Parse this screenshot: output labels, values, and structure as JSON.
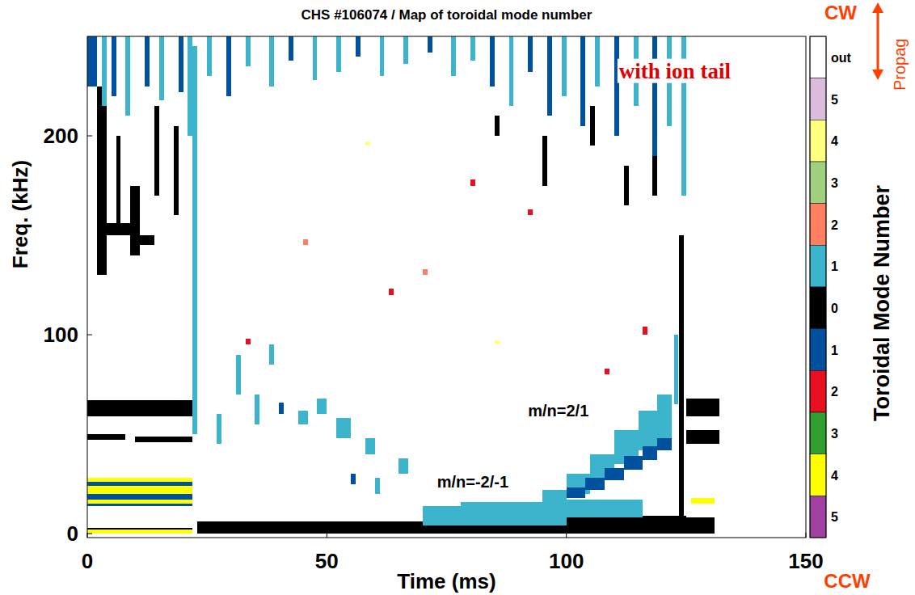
{
  "chart_data": {
    "type": "heatmap",
    "title": "CHS #106074 / Map of toroidal mode number",
    "x_label": "Time (ms)",
    "y_label": "Freq. (kHz)",
    "xlim": [
      0,
      150
    ],
    "ylim": [
      -2,
      250
    ],
    "xticks": [
      0,
      50,
      100,
      150
    ],
    "yticks": [
      0,
      100,
      200
    ],
    "annotations": [
      {
        "text": "with ion tail",
        "x": 111,
        "y": 229,
        "color": "#e00000"
      },
      {
        "text": "m/n=2/1",
        "x": 92,
        "y": 59,
        "color": "#000000"
      },
      {
        "text": "m/n=-2/-1",
        "x": 73,
        "y": 23,
        "color": "#000000"
      }
    ],
    "colorbar": {
      "title": "Toroidal Mode Number",
      "top_label": "CW",
      "bottom_label": "CCW",
      "arrow_label": "Propag",
      "entries": [
        {
          "label": "out",
          "color": "#ffffff"
        },
        {
          "value": 5,
          "direction": "CW",
          "color": "#dcbcdc"
        },
        {
          "value": 4,
          "direction": "CW",
          "color": "#ffff80"
        },
        {
          "value": 3,
          "direction": "CW",
          "color": "#a0d080"
        },
        {
          "value": 2,
          "direction": "CW",
          "color": "#ff8060"
        },
        {
          "value": 1,
          "direction": "CW",
          "color": "#3cb4cc"
        },
        {
          "value": 0,
          "color": "#000000"
        },
        {
          "value": 1,
          "direction": "CCW",
          "color": "#0050a0"
        },
        {
          "value": 2,
          "direction": "CCW",
          "color": "#e81020"
        },
        {
          "value": 3,
          "direction": "CCW",
          "color": "#30a030"
        },
        {
          "value": 4,
          "direction": "CCW",
          "color": "#ffff00"
        },
        {
          "value": 5,
          "direction": "CCW",
          "color": "#a040a0"
        }
      ]
    },
    "cells": [
      [
        0,
        22,
        59,
        67,
        0
      ],
      [
        0,
        8,
        47,
        50,
        0
      ],
      [
        10,
        22,
        46,
        49,
        0
      ],
      [
        0,
        22,
        14,
        27,
        1,
        "CCW"
      ],
      [
        0,
        22,
        20,
        24,
        4,
        "CCW"
      ],
      [
        0,
        22,
        15,
        17,
        4,
        "CCW"
      ],
      [
        0,
        22,
        26,
        28,
        4,
        "CCW"
      ],
      [
        0,
        22,
        0,
        2,
        4,
        "CCW"
      ],
      [
        0,
        22,
        2,
        3,
        0
      ],
      [
        2,
        4,
        130,
        225,
        0
      ],
      [
        6,
        7,
        155,
        200,
        0
      ],
      [
        9,
        11,
        140,
        175,
        0
      ],
      [
        14,
        15,
        170,
        215,
        0
      ],
      [
        18,
        19,
        160,
        205,
        0
      ],
      [
        11,
        14,
        145,
        150,
        0
      ],
      [
        3,
        10,
        150,
        156,
        0
      ],
      [
        0,
        2,
        225,
        250,
        1,
        "CCW"
      ],
      [
        3,
        4,
        215,
        250,
        1,
        "CW"
      ],
      [
        5,
        6,
        220,
        250,
        1,
        "CCW"
      ],
      [
        8,
        9,
        210,
        250,
        1,
        "CW"
      ],
      [
        12,
        13,
        225,
        250,
        1,
        "CCW"
      ],
      [
        15,
        16,
        218,
        250,
        1,
        "CW"
      ],
      [
        19,
        20,
        222,
        250,
        1,
        "CCW"
      ],
      [
        21,
        22,
        200,
        250,
        1,
        "CW"
      ],
      [
        22,
        23,
        50,
        245,
        1,
        "CW"
      ],
      [
        23,
        125,
        0,
        6,
        0
      ],
      [
        100,
        125,
        0,
        9,
        0
      ],
      [
        95,
        100,
        0,
        7,
        0
      ],
      [
        70,
        100,
        4,
        14,
        1,
        "CW"
      ],
      [
        78,
        100,
        6,
        16,
        1,
        "CW"
      ],
      [
        100,
        116,
        8,
        17,
        1,
        "CW"
      ],
      [
        95,
        100,
        15,
        22,
        1,
        "CW"
      ],
      [
        100,
        105,
        20,
        30,
        1,
        "CW"
      ],
      [
        105,
        110,
        28,
        40,
        1,
        "CW"
      ],
      [
        110,
        115,
        35,
        52,
        1,
        "CW"
      ],
      [
        115,
        119,
        42,
        62,
        1,
        "CW"
      ],
      [
        119,
        122,
        45,
        70,
        1,
        "CW"
      ],
      [
        100,
        104,
        18,
        23,
        1,
        "CCW"
      ],
      [
        104,
        108,
        22,
        28,
        1,
        "CCW"
      ],
      [
        108,
        112,
        27,
        33,
        1,
        "CCW"
      ],
      [
        112,
        116,
        32,
        39,
        1,
        "CCW"
      ],
      [
        116,
        119,
        37,
        44,
        1,
        "CCW"
      ],
      [
        119,
        122,
        42,
        48,
        1,
        "CCW"
      ],
      [
        35,
        36,
        55,
        70,
        1,
        "CW"
      ],
      [
        44,
        46,
        55,
        62,
        1,
        "CW"
      ],
      [
        48,
        50,
        60,
        68,
        1,
        "CW"
      ],
      [
        52,
        55,
        48,
        58,
        1,
        "CW"
      ],
      [
        58,
        60,
        40,
        48,
        1,
        "CW"
      ],
      [
        65,
        67,
        30,
        38,
        1,
        "CW"
      ],
      [
        27,
        28,
        45,
        60,
        1,
        "CW"
      ],
      [
        31,
        32,
        70,
        90,
        1,
        "CW"
      ],
      [
        38,
        39,
        85,
        95,
        1,
        "CW"
      ],
      [
        60,
        61,
        20,
        28,
        1,
        "CW"
      ],
      [
        40,
        41,
        60,
        66,
        1,
        "CCW"
      ],
      [
        55,
        56,
        25,
        30,
        1,
        "CCW"
      ],
      [
        33,
        34,
        95,
        98,
        2,
        "CCW"
      ],
      [
        45,
        46,
        145,
        148,
        2,
        "CW"
      ],
      [
        63,
        64,
        120,
        123,
        2,
        "CCW"
      ],
      [
        80,
        81,
        175,
        178,
        2,
        "CCW"
      ],
      [
        70,
        71,
        130,
        133,
        2,
        "CW"
      ],
      [
        92,
        93,
        160,
        163,
        2,
        "CCW"
      ],
      [
        108,
        109,
        80,
        83,
        2,
        "CCW"
      ],
      [
        116,
        117,
        100,
        104,
        2,
        "CCW"
      ],
      [
        58,
        59,
        195,
        197,
        4,
        "CW"
      ],
      [
        85,
        86,
        95,
        97,
        4,
        "CW"
      ],
      [
        95,
        96,
        175,
        200,
        0
      ],
      [
        105,
        106,
        195,
        215,
        0
      ],
      [
        112,
        113,
        165,
        185,
        0
      ],
      [
        118,
        119,
        170,
        190,
        0
      ],
      [
        85,
        86,
        200,
        210,
        0
      ],
      [
        25,
        26,
        230,
        250,
        1,
        "CW"
      ],
      [
        29,
        30,
        220,
        250,
        1,
        "CCW"
      ],
      [
        33,
        34,
        235,
        250,
        1,
        "CW"
      ],
      [
        38,
        39,
        225,
        250,
        1,
        "CW"
      ],
      [
        42,
        43,
        238,
        250,
        1,
        "CCW"
      ],
      [
        47,
        48,
        228,
        250,
        1,
        "CW"
      ],
      [
        52,
        53,
        232,
        250,
        1,
        "CW"
      ],
      [
        56,
        57,
        240,
        250,
        1,
        "CCW"
      ],
      [
        61,
        62,
        230,
        250,
        1,
        "CW"
      ],
      [
        66,
        67,
        236,
        250,
        1,
        "CW"
      ],
      [
        71,
        72,
        242,
        250,
        1,
        "CCW"
      ],
      [
        76,
        77,
        230,
        250,
        1,
        "CW"
      ],
      [
        80,
        81,
        238,
        250,
        1,
        "CW"
      ],
      [
        84,
        85,
        225,
        250,
        1,
        "CCW"
      ],
      [
        88,
        89,
        215,
        250,
        1,
        "CW"
      ],
      [
        92,
        93,
        232,
        250,
        1,
        "CCW"
      ],
      [
        96,
        97,
        210,
        250,
        1,
        "CCW"
      ],
      [
        99,
        100,
        220,
        250,
        1,
        "CW"
      ],
      [
        103,
        104,
        205,
        250,
        1,
        "CCW"
      ],
      [
        106,
        107,
        225,
        250,
        1,
        "CW"
      ],
      [
        110,
        111,
        200,
        250,
        1,
        "CCW"
      ],
      [
        114,
        115,
        215,
        250,
        1,
        "CW"
      ],
      [
        118,
        119,
        190,
        250,
        1,
        "CCW"
      ],
      [
        121,
        122,
        205,
        250,
        1,
        "CW"
      ],
      [
        123.5,
        124.5,
        0,
        150,
        0
      ],
      [
        122.5,
        123.3,
        65,
        100,
        1,
        "CW"
      ],
      [
        125,
        132,
        59,
        68,
        0
      ],
      [
        125,
        132,
        45,
        52,
        0
      ],
      [
        124,
        131,
        0,
        8,
        0
      ],
      [
        126,
        131,
        15,
        18,
        4,
        "CCW"
      ],
      [
        124,
        125,
        170,
        250,
        1,
        "CW"
      ]
    ]
  }
}
